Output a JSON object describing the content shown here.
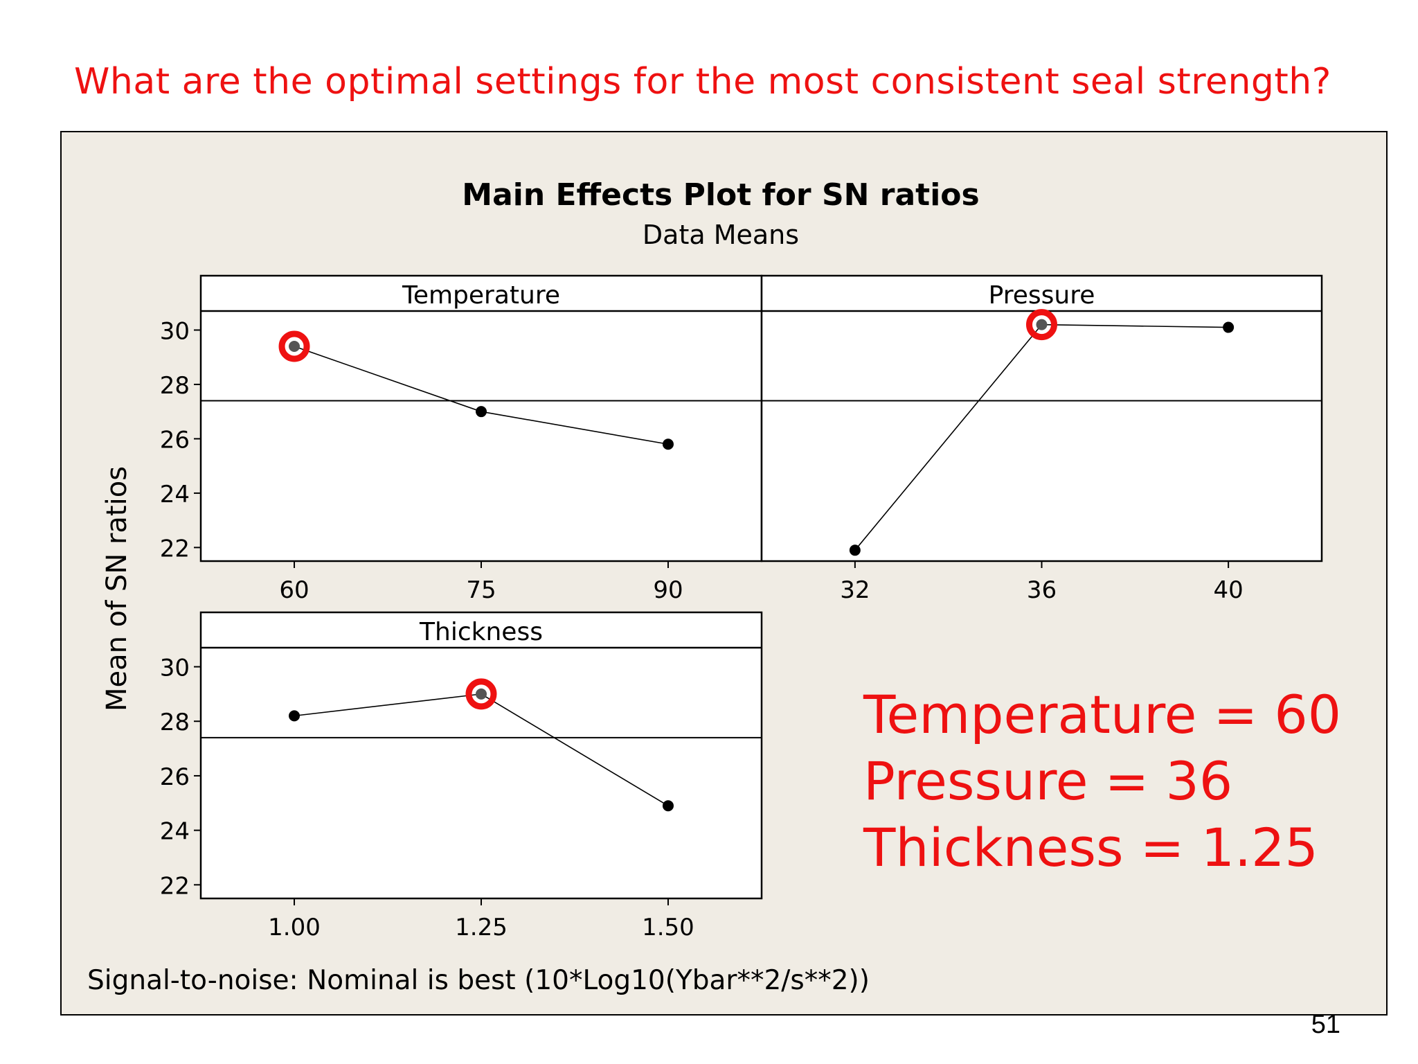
{
  "slide": {
    "question": "What are the optimal settings for the most consistent seal strength?",
    "page_number": "51"
  },
  "answer": {
    "lines": [
      "Temperature = 60",
      "Pressure = 36",
      "Thickness = 1.25"
    ],
    "color": "#ee1111"
  },
  "colors": {
    "plot_background": "#f0ece4",
    "panel_background": "#ffffff",
    "line": "#000000",
    "highlight_ring": "#ee1111"
  },
  "chart_data": {
    "type": "line",
    "title": "Main Effects Plot for SN ratios",
    "subtitle": "Data Means",
    "ylabel": "Mean of SN ratios",
    "footnote": "Signal-to-noise: Nominal is best (10*Log10(Ybar**2/s**2))",
    "ylim": [
      21.5,
      30.7
    ],
    "yticks": [
      22,
      24,
      26,
      28,
      30
    ],
    "reference_line": 27.4,
    "grid": false,
    "panels": [
      {
        "name": "Temperature",
        "x": [
          "60",
          "75",
          "90"
        ],
        "values": [
          29.4,
          27.0,
          25.8
        ],
        "highlight_index": 0
      },
      {
        "name": "Pressure",
        "x": [
          "32",
          "36",
          "40"
        ],
        "values": [
          21.9,
          30.2,
          30.1
        ],
        "highlight_index": 1
      },
      {
        "name": "Thickness",
        "x": [
          "1.00",
          "1.25",
          "1.50"
        ],
        "values": [
          28.2,
          29.0,
          24.9
        ],
        "highlight_index": 1
      }
    ]
  }
}
